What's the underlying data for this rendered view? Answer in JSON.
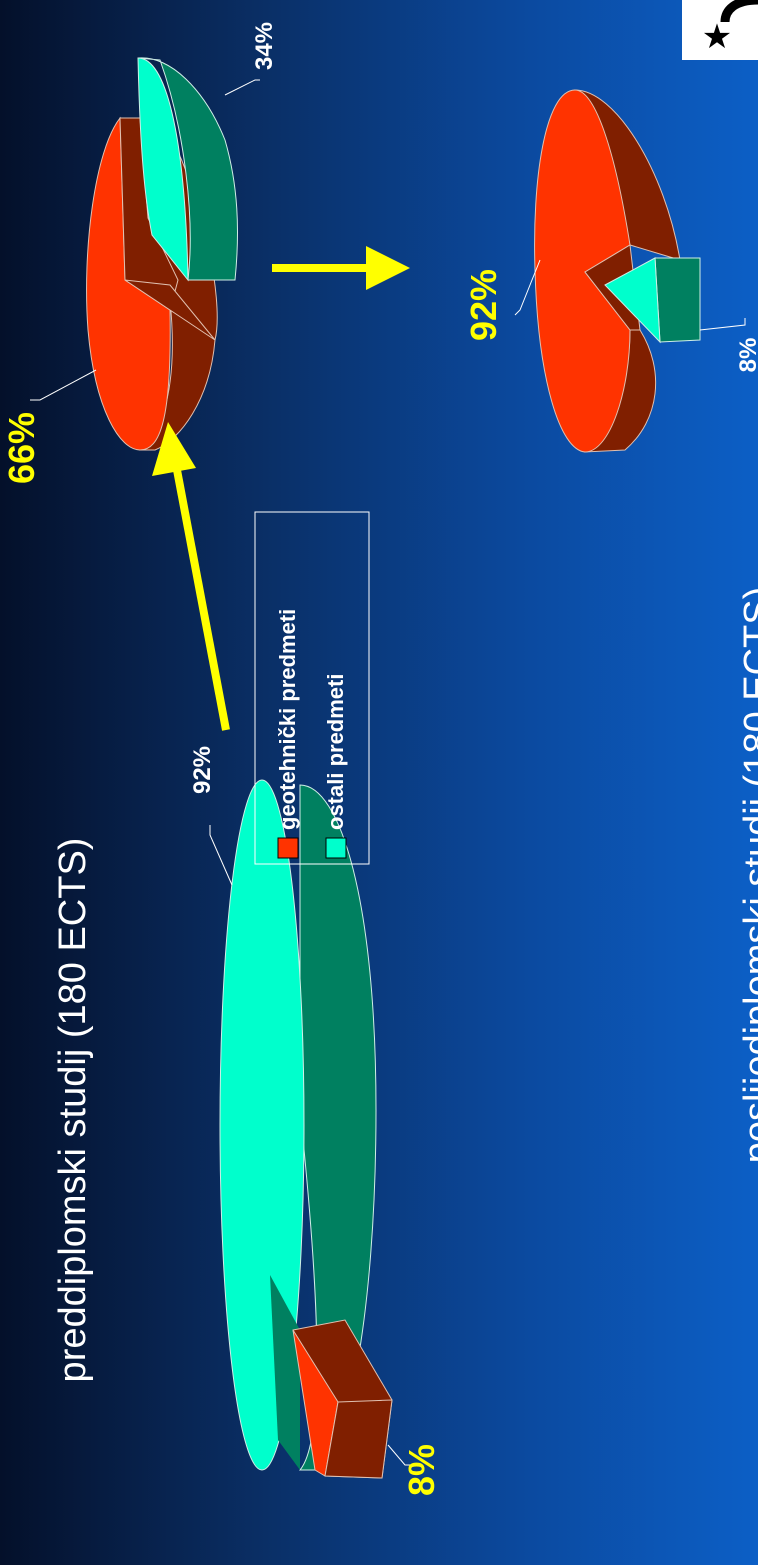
{
  "slide": {
    "title_undergrad": "preddiplomski studij (180 ECTS)",
    "title_grad": "poslijediplomski studij (180 ECTS)",
    "logo_symbol": "★"
  },
  "legend": {
    "items": [
      {
        "label": "geotehnički predmeti",
        "color": "#ff3300"
      },
      {
        "label": "ostali predmeti",
        "color": "#00ffcc"
      }
    ]
  },
  "chart_data": [
    {
      "type": "pie",
      "subtype": "3d-exploded",
      "series": [
        {
          "name": "geotehnički predmeti",
          "value": 8,
          "label": "8%",
          "color": "#ff3300"
        },
        {
          "name": "ostali predmeti",
          "value": 92,
          "label": "92%",
          "color": "#00ffcc"
        }
      ]
    },
    {
      "type": "pie",
      "subtype": "3d-exploded",
      "series": [
        {
          "name": "geotehnički predmeti",
          "value": 66,
          "label": "66%",
          "color": "#ff3300"
        },
        {
          "name": "ostali predmeti",
          "value": 34,
          "label": "34%",
          "color": "#00ffcc"
        }
      ]
    },
    {
      "type": "pie",
      "subtype": "3d-exploded",
      "series": [
        {
          "name": "geotehnički predmeti",
          "value": 92,
          "label": "92%",
          "color": "#ff3300"
        },
        {
          "name": "ostali predmeti",
          "value": 8,
          "label": "8%",
          "color": "#00ffcc"
        }
      ]
    }
  ]
}
